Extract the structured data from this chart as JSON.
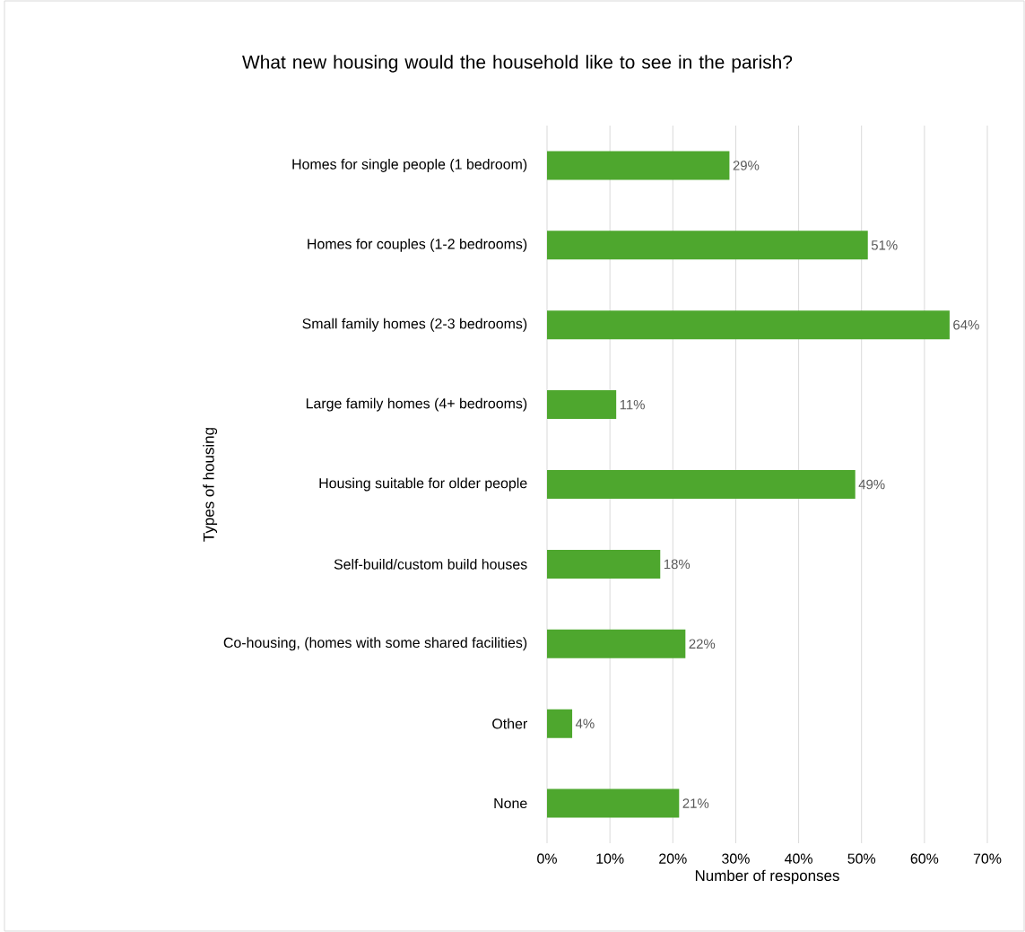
{
  "chart_data": {
    "type": "bar",
    "orientation": "horizontal",
    "title": "What new housing would the household like to see in the parish?",
    "xlabel": "Number of responses",
    "ylabel": "Types of housing",
    "categories": [
      "Homes for single people (1 bedroom)",
      "Homes for couples (1-2 bedrooms)",
      "Small family homes (2-3 bedrooms)",
      "Large family homes (4+ bedrooms)",
      "Housing suitable for older people",
      "Self-build/custom build houses",
      "Co-housing, (homes with some shared facilities)",
      "Other",
      "None"
    ],
    "values": [
      29,
      51,
      64,
      11,
      49,
      18,
      22,
      4,
      21
    ],
    "value_labels": [
      "29%",
      "51%",
      "64%",
      "11%",
      "49%",
      "18%",
      "22%",
      "4%",
      "21%"
    ],
    "color": "#4ea72e",
    "xlim": [
      0,
      70
    ],
    "xticks": [
      {
        "value": 0,
        "label": "0%"
      },
      {
        "value": 10,
        "label": "10%"
      },
      {
        "value": 20,
        "label": "20%"
      },
      {
        "value": 30,
        "label": "30%"
      },
      {
        "value": 40,
        "label": "40%"
      },
      {
        "value": 50,
        "label": "50%"
      },
      {
        "value": 60,
        "label": "60%"
      },
      {
        "value": 70,
        "label": "70%"
      }
    ],
    "grid": "x"
  }
}
